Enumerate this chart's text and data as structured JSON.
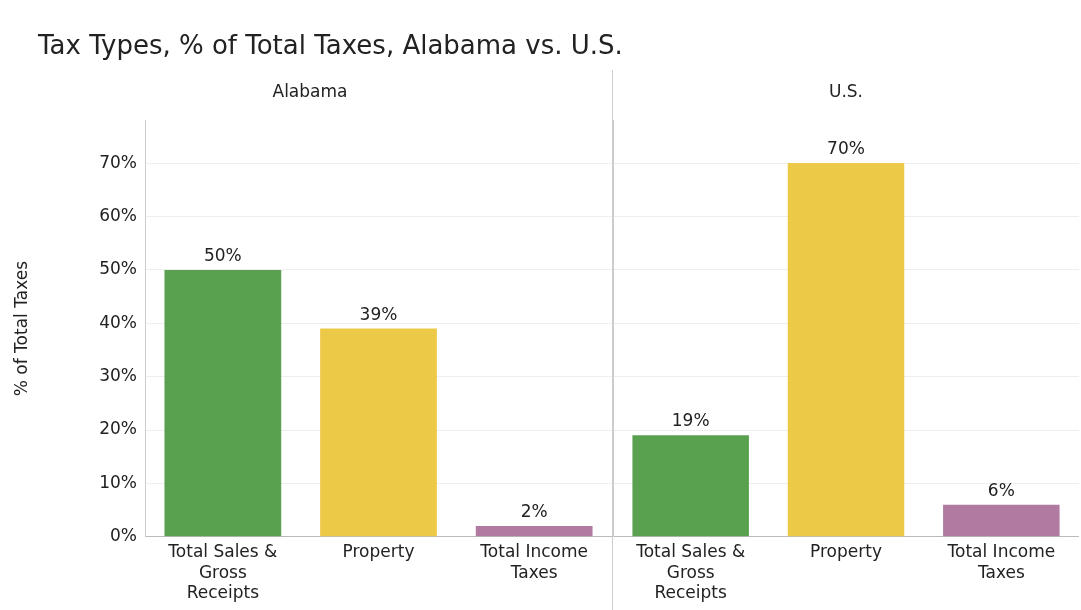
{
  "chart_data": [
    {
      "type": "bar",
      "title": "Tax Types, % of Total Taxes, Alabama vs. U.S.",
      "subtitle": "Alabama",
      "ylabel": "% of Total Taxes",
      "categories": [
        "Total Sales & Gross Receipts",
        "Property",
        "Total Income Taxes"
      ],
      "values": [
        50,
        39,
        2
      ],
      "colors": [
        "#59a14f",
        "#edc948",
        "#b07aa1"
      ],
      "value_labels": [
        "50%",
        "39%",
        "2%"
      ],
      "ylim": [
        0,
        78
      ],
      "yticks": [
        {
          "value": 0,
          "label": "0%"
        },
        {
          "value": 10,
          "label": "10%"
        },
        {
          "value": 20,
          "label": "20%"
        },
        {
          "value": 30,
          "label": "30%"
        },
        {
          "value": 40,
          "label": "40%"
        },
        {
          "value": 50,
          "label": "50%"
        },
        {
          "value": 60,
          "label": "60%"
        },
        {
          "value": 70,
          "label": "70%"
        }
      ],
      "grid": "y"
    },
    {
      "type": "bar",
      "subtitle": "U.S.",
      "categories": [
        "Total Sales & Gross Receipts",
        "Property",
        "Total Income Taxes"
      ],
      "values": [
        19,
        70,
        6
      ],
      "colors": [
        "#59a14f",
        "#edc948",
        "#b07aa1"
      ],
      "value_labels": [
        "19%",
        "70%",
        "6%"
      ],
      "ylim": [
        0,
        78
      ],
      "yticks": [
        0,
        10,
        20,
        30,
        40,
        50,
        60,
        70
      ],
      "grid": "y",
      "tick_labels": "x"
    }
  ]
}
